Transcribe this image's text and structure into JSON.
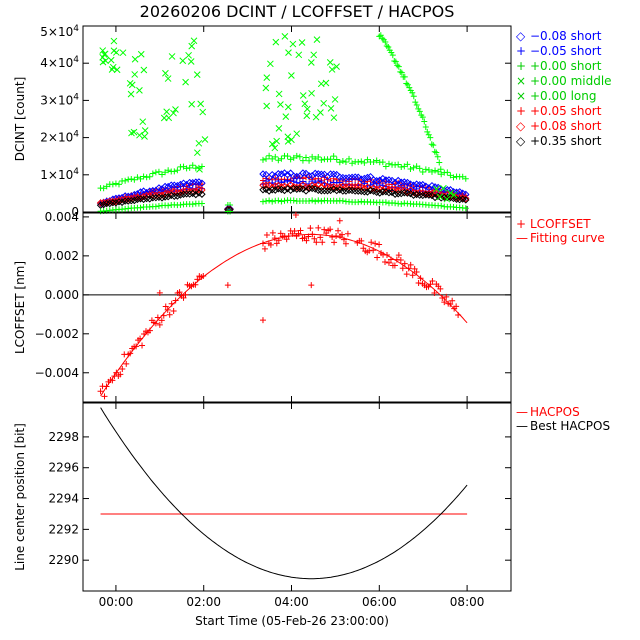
{
  "title": "20260206 DCINT / LCOFFSET / HACPOS",
  "chart_data": [
    {
      "type": "scatter",
      "id": "dcint",
      "ylabel": "DCINT [count]",
      "ylim": [
        0,
        50000
      ],
      "xlim": [
        -0.75,
        9.0
      ],
      "yticks": [
        {
          "v": 0,
          "base": "0",
          "exp": ""
        },
        {
          "v": 10000,
          "base": "1×10",
          "exp": "4"
        },
        {
          "v": 20000,
          "base": "2×10",
          "exp": "4"
        },
        {
          "v": 30000,
          "base": "3×10",
          "exp": "4"
        },
        {
          "v": 40000,
          "base": "4×10",
          "exp": "4"
        },
        {
          "v": 50000,
          "base": "5×10",
          "exp": "4"
        }
      ],
      "legend": [
        {
          "sym": "◇",
          "label": "−0.08 short",
          "color": "#0000ff"
        },
        {
          "sym": "+",
          "label": "−0.05 short",
          "color": "#0000ff"
        },
        {
          "sym": "+",
          "label": "+0.00 short",
          "color": "#00cc00"
        },
        {
          "sym": "×",
          "label": "+0.00 middle",
          "color": "#00cc00"
        },
        {
          "sym": "×",
          "label": "+0.00 long",
          "color": "#00cc00"
        },
        {
          "sym": "+",
          "label": "+0.05 short",
          "color": "#ff0000"
        },
        {
          "sym": "◇",
          "label": "+0.08 short",
          "color": "#ff0000"
        },
        {
          "sym": "◇",
          "label": "+0.35 short",
          "color": "#000000"
        }
      ],
      "segments": [
        [
          -0.35,
          2.0
        ],
        [
          3.35,
          8.0
        ]
      ],
      "stray_x": [
        2.55,
        2.6
      ],
      "series": [
        {
          "name": "+0.00 short (high)",
          "color": "#00ff00",
          "marker": "plus",
          "peak": 14500,
          "base": 7500
        },
        {
          "name": "+0.05 short",
          "color": "#ff0000",
          "marker": "plus",
          "peak": 9000,
          "base": 3500
        },
        {
          "name": "−0.08 short",
          "color": "#0000ff",
          "marker": "diamond",
          "peak": 10000,
          "base": 3500
        },
        {
          "name": "−0.05 short",
          "color": "#0000ff",
          "marker": "plus",
          "peak": 8000,
          "base": 3000
        },
        {
          "name": "+0.08 short",
          "color": "#ff0000",
          "marker": "diamond",
          "peak": 7000,
          "base": 3000
        },
        {
          "name": "+0.35 short",
          "color": "#000000",
          "marker": "diamond",
          "peak": 6000,
          "base": 2500
        },
        {
          "name": "+0.00 short (low)",
          "color": "#00ff00",
          "marker": "plus",
          "peak": 3000,
          "base": 600
        }
      ],
      "clusters": [
        {
          "x0": -0.4,
          "x1": 0.2,
          "y0": 38000,
          "y1": 47000,
          "n": 14
        },
        {
          "x0": 0.3,
          "x1": 0.7,
          "y0": 20000,
          "y1": 45000,
          "n": 14
        },
        {
          "x0": 1.1,
          "x1": 1.95,
          "y0": 25000,
          "y1": 48000,
          "n": 16
        },
        {
          "x0": 1.85,
          "x1": 2.05,
          "y0": 10000,
          "y1": 30000,
          "n": 6
        },
        {
          "x0": 3.4,
          "x1": 4.2,
          "y0": 12000,
          "y1": 48000,
          "n": 22
        },
        {
          "x0": 4.2,
          "x1": 5.1,
          "y0": 25000,
          "y1": 48000,
          "n": 20
        }
      ],
      "decay": {
        "x0": 6.0,
        "x1": 7.4,
        "y0": 47500,
        "y1": 12000,
        "n": 42
      }
    },
    {
      "type": "scatter",
      "id": "lcoffset",
      "ylabel": "LCOFFSET [nm]",
      "ylim": [
        -0.0055,
        0.0042
      ],
      "xlim": [
        -0.75,
        9.0
      ],
      "yticks": [
        "0.004",
        "0.002",
        "0.000",
        "−0.002",
        "−0.004"
      ],
      "ytick_values": [
        0.004,
        0.002,
        0.0,
        -0.002,
        -0.004
      ],
      "zero_line": 0.0,
      "legend": [
        {
          "sym": "+",
          "label": "LCOFFSET",
          "color": "#ff0000"
        },
        {
          "sym": "—",
          "label": "Fitting curve",
          "color": "#ff0000"
        }
      ],
      "fit": {
        "vertex_x": 4.45,
        "vertex_y": 0.0031,
        "a": -0.00036,
        "x_start": -0.35,
        "x_end": 8.0
      },
      "noise": 0.0004,
      "segments": [
        [
          -0.35,
          2.0
        ],
        [
          3.35,
          5.3
        ],
        [
          5.5,
          7.8
        ]
      ],
      "outliers": [
        {
          "x": 2.55,
          "y": 0.0005
        },
        {
          "x": 3.35,
          "y": -0.0013
        },
        {
          "x": 4.45,
          "y": 0.0005
        },
        {
          "x": 5.1,
          "y": 0.0038
        },
        {
          "x": 4.1,
          "y": 0.0041
        },
        {
          "x": 1.0,
          "y": 0.0001
        }
      ]
    },
    {
      "type": "line",
      "id": "hacpos",
      "ylabel": "Line center position [bit]",
      "xlabel": "Start Time (05-Feb-26 23:00:00)",
      "ylim": [
        2288.0,
        2300.2
      ],
      "xlim": [
        -0.75,
        9.0
      ],
      "yticks": [
        "2298",
        "2296",
        "2294",
        "2292",
        "2290"
      ],
      "ytick_values": [
        2298,
        2296,
        2294,
        2292,
        2290
      ],
      "xticks": [
        "00:00",
        "02:00",
        "04:00",
        "06:00",
        "08:00"
      ],
      "xtick_values": [
        0,
        2,
        4,
        6,
        8
      ],
      "legend": [
        {
          "sym": "—",
          "label": "HACPOS",
          "color": "#ff0000"
        },
        {
          "sym": "—",
          "label": "Best HACPOS",
          "color": "#000000"
        }
      ],
      "hacpos": {
        "y": 2293.0,
        "x_start": -0.35,
        "x_end": 8.0
      },
      "best": {
        "vertex_x": 4.45,
        "vertex_y": 2288.8,
        "a": 0.4818,
        "x_start": -0.35,
        "x_end": 8.0
      }
    }
  ]
}
